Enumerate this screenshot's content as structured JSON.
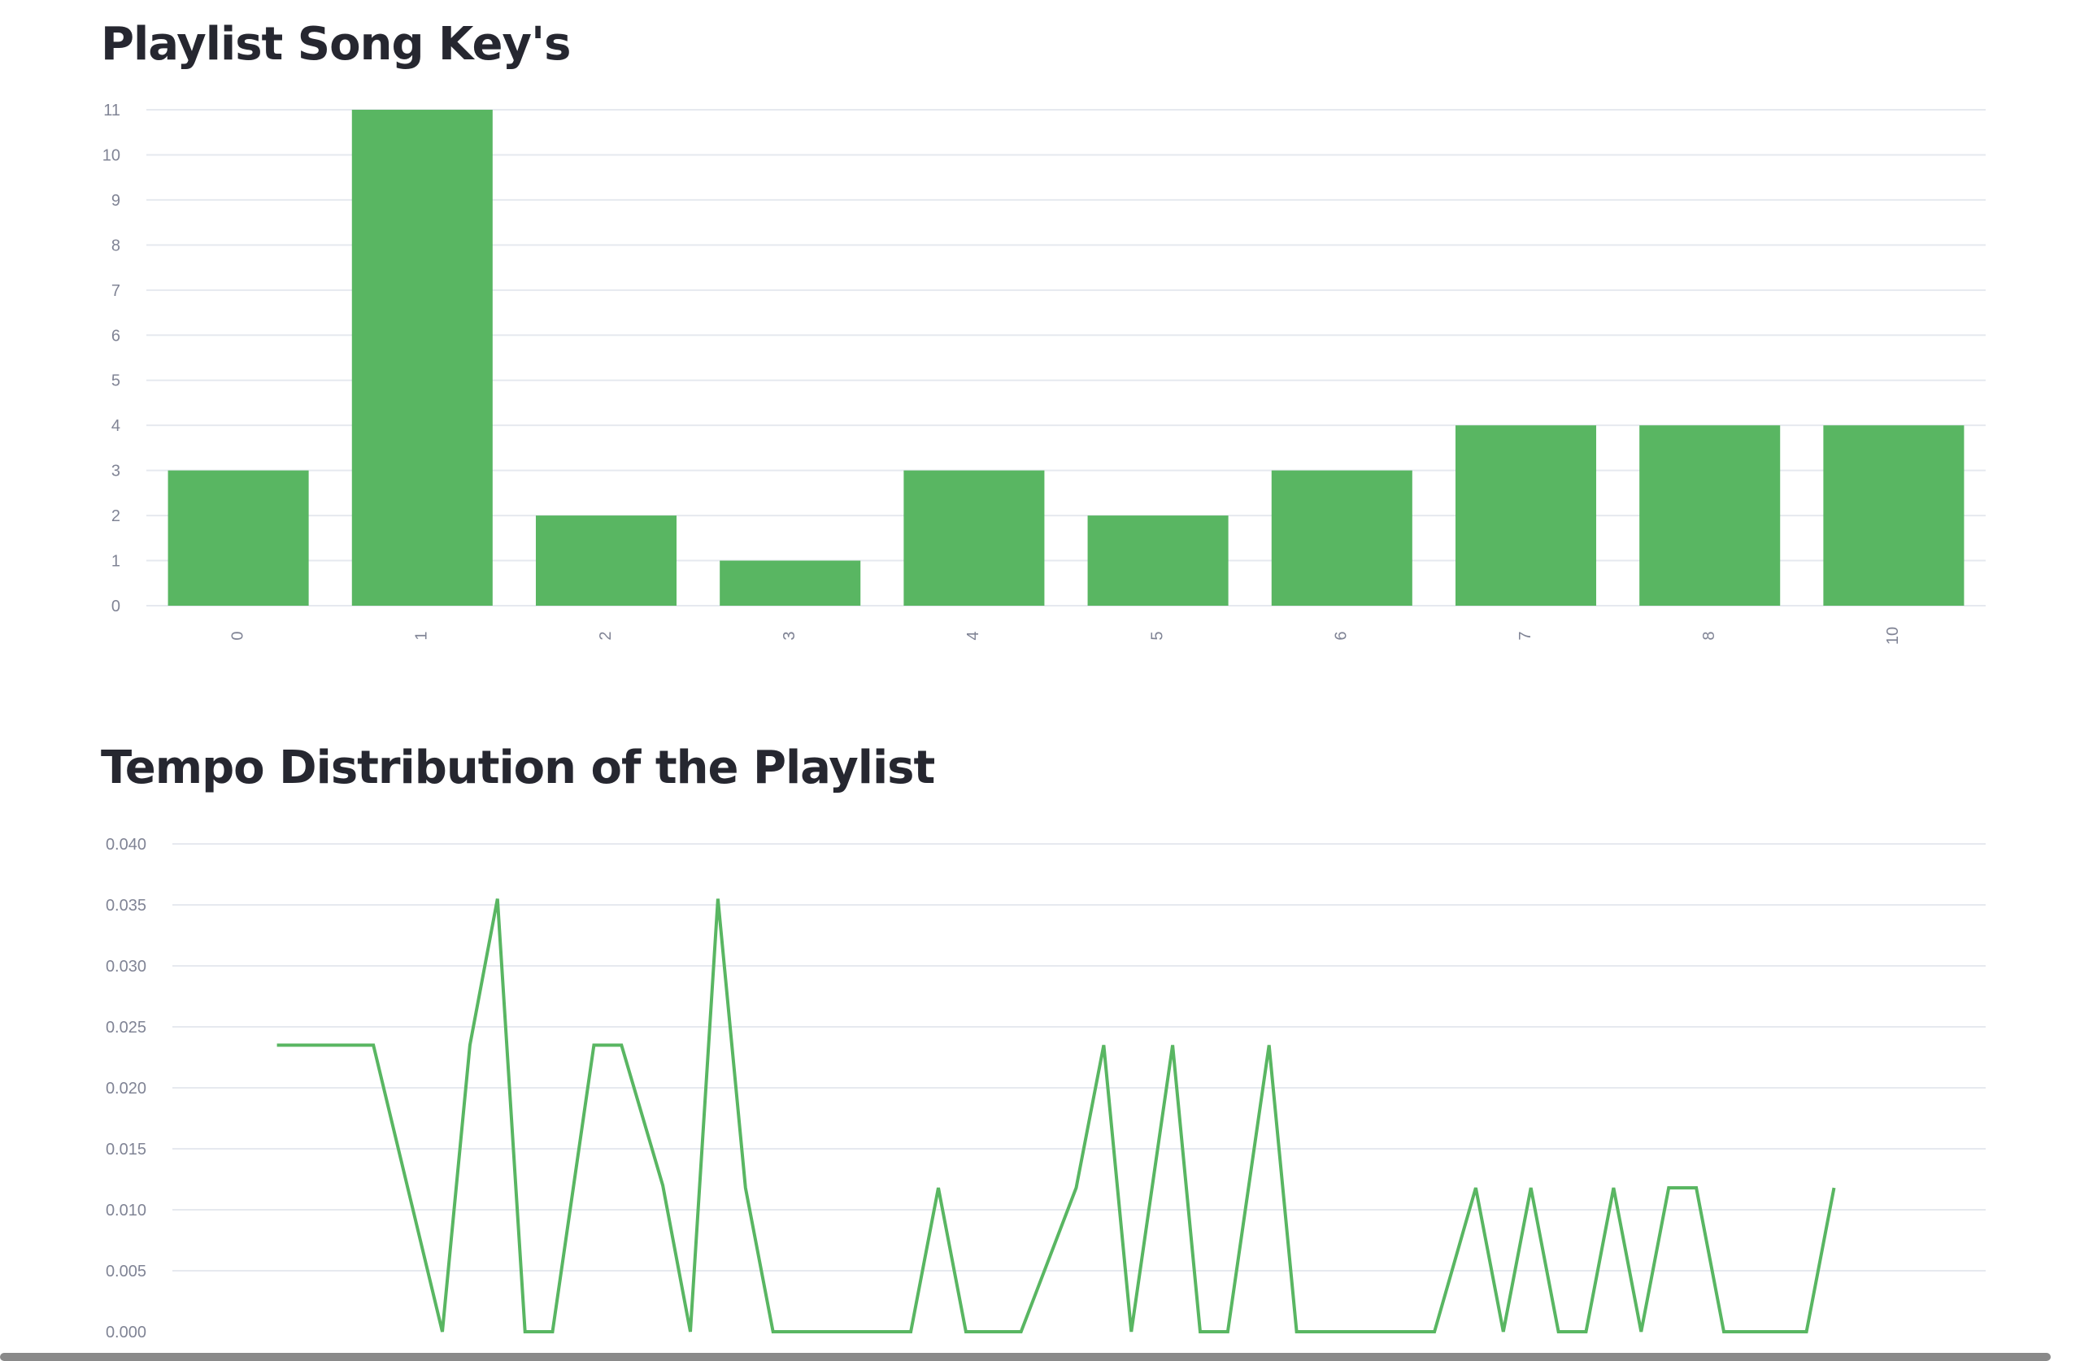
{
  "charts": [
    {
      "title": "Playlist Song Key's"
    },
    {
      "title": "Tempo Distribution of the Playlist"
    }
  ],
  "chart_data": [
    {
      "type": "bar",
      "title": "Playlist Song Key's",
      "xlabel": "",
      "ylabel": "",
      "categories": [
        "0",
        "1",
        "2",
        "3",
        "4",
        "5",
        "6",
        "7",
        "8",
        "10"
      ],
      "values": [
        3,
        11,
        2,
        1,
        3,
        2,
        3,
        4,
        4,
        4
      ],
      "ylim": [
        0,
        11
      ],
      "yticks": [
        0,
        1,
        2,
        3,
        4,
        5,
        6,
        7,
        8,
        9,
        10,
        11
      ],
      "color": "#59b662",
      "grid": true,
      "x_tick_rotation": "vertical"
    },
    {
      "type": "line",
      "title": "Tempo Distribution of the Playlist",
      "xlabel": "",
      "ylabel": "",
      "x": [
        77,
        79,
        84,
        89,
        91,
        93,
        95,
        97,
        100,
        102,
        105,
        107,
        109,
        111,
        113,
        115,
        119,
        123,
        125,
        127,
        131,
        135,
        137,
        139,
        142,
        144,
        146,
        149,
        151,
        155,
        159,
        161,
        164,
        166,
        168,
        170,
        172,
        174,
        176,
        178,
        180,
        182,
        184,
        186,
        188,
        190
      ],
      "y": [
        0.0235,
        0.0235,
        0.0235,
        0.0,
        0.0235,
        0.0355,
        0.0,
        0.0,
        0.0235,
        0.0235,
        0.012,
        0.0,
        0.0355,
        0.0118,
        0.0,
        0.0,
        0.0,
        0.0,
        0.0118,
        0.0,
        0.0,
        0.0118,
        0.0235,
        0.0,
        0.0235,
        0.0,
        0.0,
        0.0235,
        0.0,
        0.0,
        0.0,
        0.0,
        0.0118,
        0.0,
        0.0118,
        0.0,
        0.0,
        0.0118,
        0.0,
        0.0118,
        0.0118,
        0.0,
        0.0,
        0.0,
        0.0,
        0.0118
      ],
      "xlim": [
        70,
        200
      ],
      "ylim": [
        0,
        0.04
      ],
      "xticks": [
        "70",
        "75",
        "80",
        "85",
        "90",
        "95",
        "100",
        "105",
        "110",
        "115",
        "120",
        "125",
        "130",
        "135",
        "140",
        "145",
        "150",
        "155",
        "160",
        "165",
        "170",
        "175",
        "180",
        "185",
        "190",
        "195",
        "200"
      ],
      "yticks": [
        "0.000",
        "0.005",
        "0.010",
        "0.015",
        "0.020",
        "0.025",
        "0.030",
        "0.035",
        "0.040"
      ],
      "color": "#59b662",
      "grid": true
    }
  ]
}
